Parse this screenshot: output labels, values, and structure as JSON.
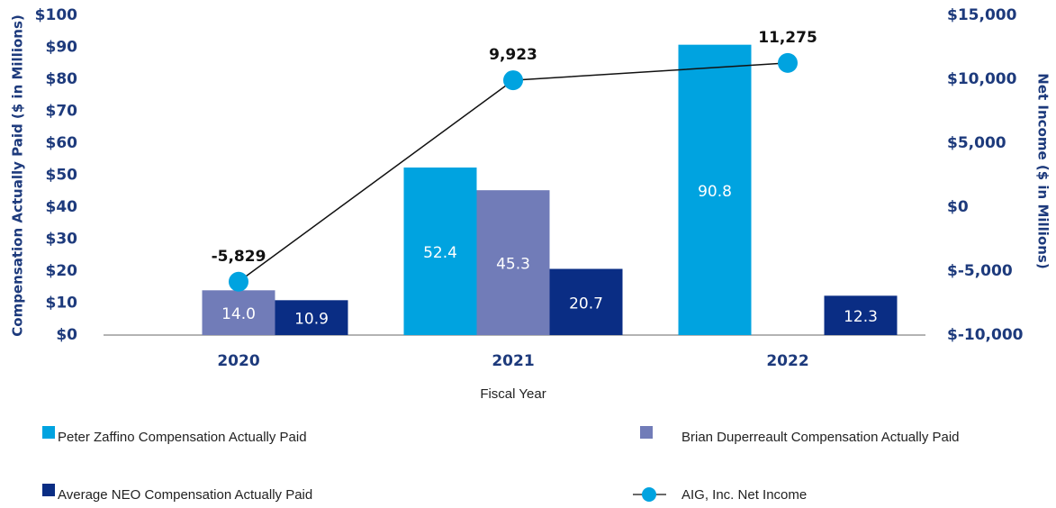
{
  "chart_data": {
    "type": "bar",
    "x_label": "Fiscal Year",
    "y_label": "Compensation Actually Paid ($ in Millions)",
    "y2_label": "Net Income ($ in Millions)",
    "categories": [
      "2020",
      "2021",
      "2022"
    ],
    "series": [
      {
        "name": "Peter Zaffino Compensation Actually Paid",
        "color": "#00a3e0",
        "values": [
          null,
          52.4,
          90.8
        ],
        "value_labels": [
          null,
          "52.4",
          "90.8"
        ]
      },
      {
        "name": "Brian Duperreault Compensation Actually Paid",
        "color": "#717cb8",
        "values": [
          14.0,
          45.3,
          null
        ],
        "value_labels": [
          "14.0",
          "45.3",
          null
        ]
      },
      {
        "name": "Average NEO Compensation Actually Paid",
        "color": "#0a2d84",
        "values": [
          10.9,
          20.7,
          12.3
        ],
        "value_labels": [
          "10.9",
          "20.7",
          "12.3"
        ]
      },
      {
        "name": "AIG, Inc. Net Income",
        "type": "line",
        "axis": "y2",
        "color": "#00a3e0",
        "line_color": "#111111",
        "values": [
          -5829,
          9923,
          11275
        ],
        "value_labels": [
          "-5,829",
          "9,923",
          "11,275"
        ]
      }
    ],
    "ylim": [
      0,
      100
    ],
    "yticks": [
      {
        "value": 0,
        "label": "$0"
      },
      {
        "value": 10,
        "label": "$10"
      },
      {
        "value": 20,
        "label": "$20"
      },
      {
        "value": 30,
        "label": "$30"
      },
      {
        "value": 40,
        "label": "$40"
      },
      {
        "value": 50,
        "label": "$50"
      },
      {
        "value": 60,
        "label": "$60"
      },
      {
        "value": 70,
        "label": "$70"
      },
      {
        "value": 80,
        "label": "$80"
      },
      {
        "value": 90,
        "label": "$90"
      },
      {
        "value": 100,
        "label": "$100"
      }
    ],
    "y2lim": [
      -10000,
      15000
    ],
    "y2ticks": [
      {
        "value": -10000,
        "label": "$-10,000"
      },
      {
        "value": -5000,
        "label": "$-5,000"
      },
      {
        "value": 0,
        "label": "$0"
      },
      {
        "value": 5000,
        "label": "$5,000"
      },
      {
        "value": 10000,
        "label": "$10,000"
      },
      {
        "value": 15000,
        "label": "$15,000"
      }
    ],
    "grid": false
  }
}
